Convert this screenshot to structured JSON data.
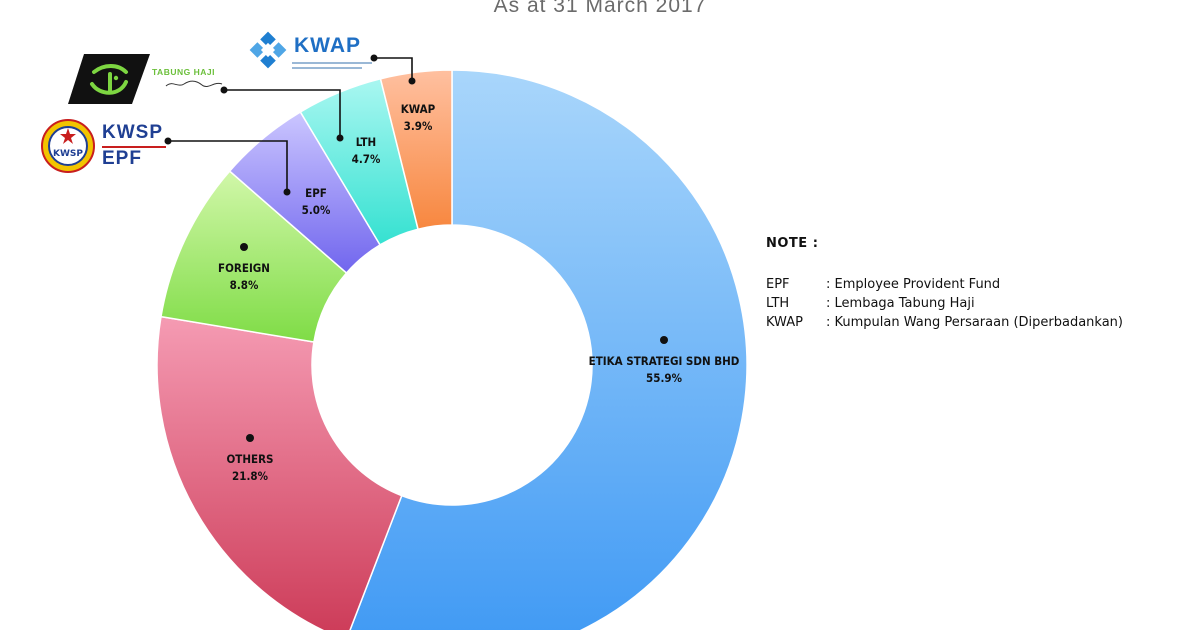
{
  "chart_data": {
    "type": "pie",
    "subtitle": "As at 31 March 2017",
    "donut": true,
    "slices": [
      {
        "label": "ETIKA STRATEGI SDN BHD",
        "value_label": "55.9%",
        "value": 55.9,
        "color": "#5aa9f6"
      },
      {
        "label": "OTHERS",
        "value_label": "21.8%",
        "value": 21.8,
        "color": "#e9708f"
      },
      {
        "label": "FOREIGN",
        "value_label": "8.8%",
        "value": 8.8,
        "color": "#9be56a"
      },
      {
        "label": "EPF",
        "value_label": "5.0%",
        "value": 5.0,
        "color": "#8d84f2"
      },
      {
        "label": "LTH",
        "value_label": "4.7%",
        "value": 4.7,
        "color": "#5de9dd"
      },
      {
        "label": "KWAP",
        "value_label": "3.9%",
        "value": 3.9,
        "color": "#f99a63"
      }
    ]
  },
  "note": {
    "title": "NOTE :",
    "rows": [
      {
        "abbr": "EPF",
        "definition": ": Employee Provident Fund"
      },
      {
        "abbr": "LTH",
        "definition": ": Lembaga Tabung Haji"
      },
      {
        "abbr": "KWAP",
        "definition": ": Kumpulan Wang Persaraan (Diperbadankan)"
      }
    ]
  },
  "logos": {
    "kwap": {
      "text": "KWAP",
      "icon": "kwap-diamond-logo"
    },
    "tabung_haji": {
      "text": "TABUNG HAJI",
      "icon": "tabung-haji-logo"
    },
    "kwsp": {
      "text_top": "KWSP",
      "text_bottom": "EPF",
      "icon": "kwsp-emblem-logo"
    }
  }
}
